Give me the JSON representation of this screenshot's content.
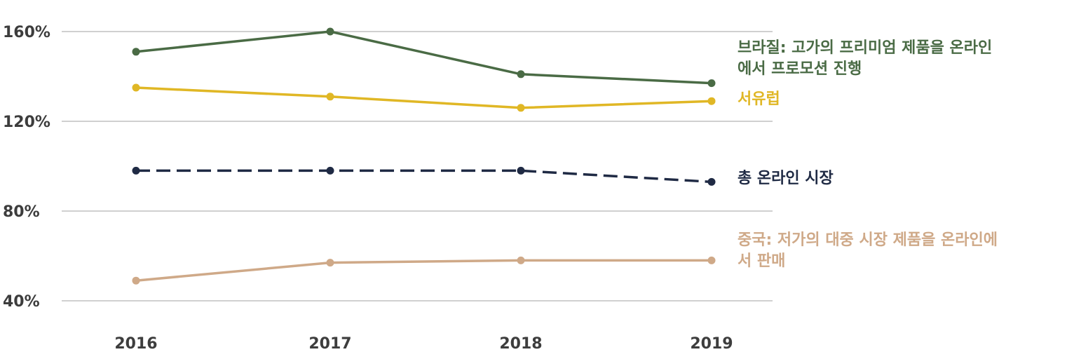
{
  "chart_data": {
    "type": "line",
    "title": "",
    "xlabel": "",
    "ylabel": "",
    "x": [
      2016,
      2017,
      2018,
      2019
    ],
    "x_tick_labels": [
      "2016",
      "2017",
      "2018",
      "2019"
    ],
    "y_tick_labels": [
      "160%",
      "120%",
      "80%",
      "40%"
    ],
    "y_ticks": [
      160,
      120,
      80,
      40
    ],
    "ylim": [
      40,
      160
    ],
    "grid": "horizontal",
    "legend": "labels at line ends (right)",
    "series": [
      {
        "name": "브라질: 고가의 프리미엄 제품을 온라인에서 프로모션 진행",
        "values": [
          151,
          160,
          141,
          137
        ],
        "color": "#4a6b45",
        "dashed": false
      },
      {
        "name": "서유럽",
        "values": [
          135,
          131,
          126,
          129
        ],
        "color": "#e0b725",
        "dashed": false
      },
      {
        "name": "총 온라인 시장",
        "values": [
          98,
          98,
          98,
          93
        ],
        "color": "#1f2a44",
        "dashed": true
      },
      {
        "name": "중국: 저가의 대중 시장 제품을   온라인에서 판매",
        "values": [
          49,
          57,
          58,
          58
        ],
        "color": "#cfa988",
        "dashed": false
      }
    ]
  }
}
